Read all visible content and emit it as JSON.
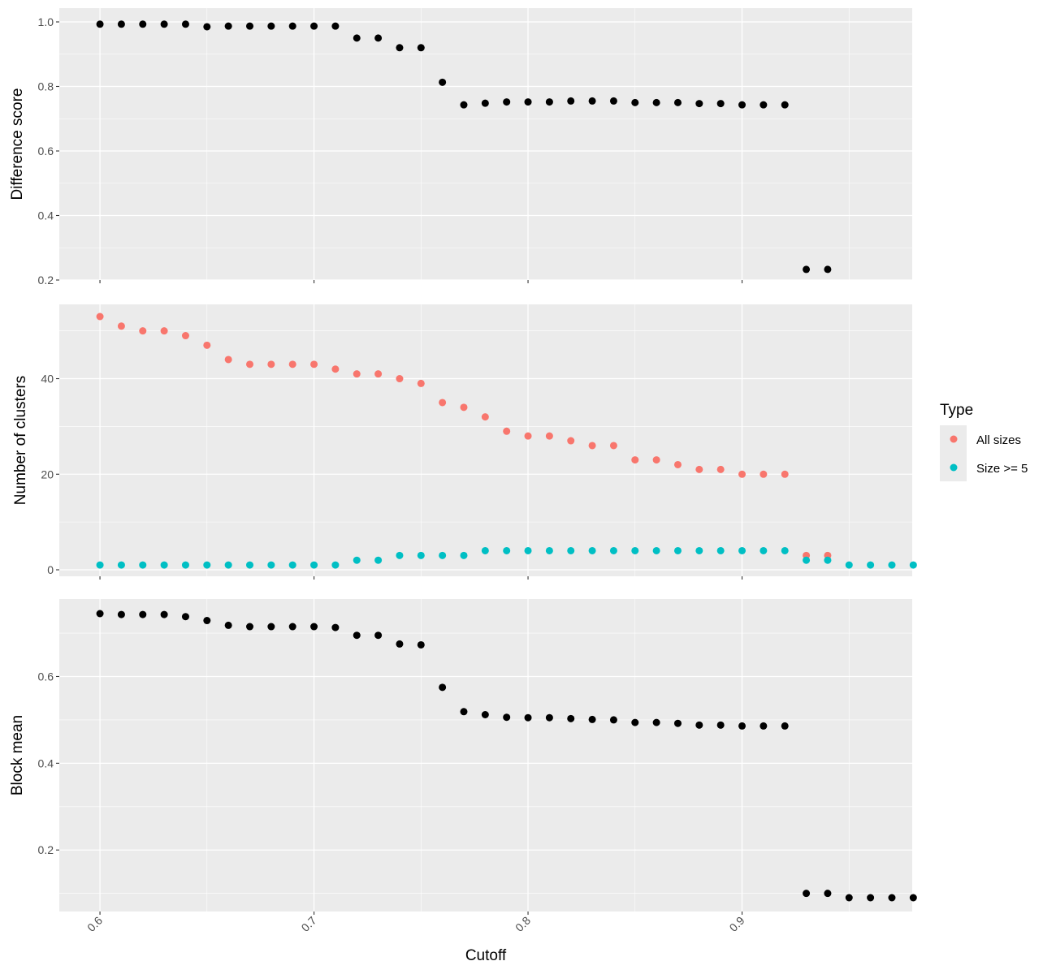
{
  "chart_data": {
    "type": "scatter",
    "x_axis": {
      "label": "Cutoff",
      "ticks": [
        0.6,
        0.7,
        0.8,
        0.9
      ],
      "tick_labels": [
        "0.6",
        "0.7",
        "0.8",
        "0.9"
      ],
      "range": [
        0.581,
        0.9795
      ]
    },
    "legend": {
      "title": "Type",
      "placement": "right",
      "entries": [
        {
          "label": "All sizes",
          "color": "#F8766D"
        },
        {
          "label": "Size >= 5",
          "color": "#00BFC4"
        }
      ]
    },
    "panels": [
      {
        "ylabel": "Difference score",
        "ylim": [
          0.2,
          1.0
        ],
        "yticks": [
          0.2,
          0.4,
          0.6,
          0.8,
          1.0
        ],
        "ytick_labels": [
          "0.2",
          "0.4",
          "0.6",
          "0.8",
          "1.0"
        ],
        "series": [
          {
            "color": "#000000",
            "x": [
              0.6,
              0.61,
              0.62,
              0.63,
              0.64,
              0.65,
              0.66,
              0.67,
              0.68,
              0.69,
              0.7,
              0.71,
              0.72,
              0.73,
              0.74,
              0.75,
              0.76,
              0.77,
              0.78,
              0.79,
              0.8,
              0.81,
              0.82,
              0.83,
              0.84,
              0.85,
              0.86,
              0.87,
              0.88,
              0.89,
              0.9,
              0.91,
              0.92,
              0.93,
              0.94
            ],
            "y": [
              0.993,
              0.993,
              0.993,
              0.993,
              0.993,
              0.985,
              0.987,
              0.987,
              0.987,
              0.987,
              0.987,
              0.987,
              0.95,
              0.95,
              0.92,
              0.92,
              0.813,
              0.743,
              0.748,
              0.752,
              0.752,
              0.752,
              0.755,
              0.755,
              0.755,
              0.75,
              0.75,
              0.75,
              0.747,
              0.747,
              0.743,
              0.743,
              0.743,
              0.233,
              0.233
            ]
          }
        ]
      },
      {
        "ylabel": "Number of clusters",
        "ylim": [
          0,
          53
        ],
        "yticks": [
          0,
          20,
          40
        ],
        "ytick_labels": [
          "0",
          "20",
          "40"
        ],
        "series": [
          {
            "name": "All sizes",
            "color": "#F8766D",
            "x": [
              0.6,
              0.61,
              0.62,
              0.63,
              0.64,
              0.65,
              0.66,
              0.67,
              0.68,
              0.69,
              0.7,
              0.71,
              0.72,
              0.73,
              0.74,
              0.75,
              0.76,
              0.77,
              0.78,
              0.79,
              0.8,
              0.81,
              0.82,
              0.83,
              0.84,
              0.85,
              0.86,
              0.87,
              0.88,
              0.89,
              0.9,
              0.91,
              0.92,
              0.93,
              0.94
            ],
            "y": [
              53,
              51,
              50,
              50,
              49,
              47,
              44,
              43,
              43,
              43,
              43,
              42,
              41,
              41,
              40,
              39,
              35,
              34,
              32,
              29,
              28,
              28,
              27,
              26,
              26,
              23,
              23,
              22,
              21,
              21,
              20,
              20,
              20,
              3,
              3
            ]
          },
          {
            "name": "Size >= 5",
            "color": "#00BFC4",
            "x": [
              0.6,
              0.61,
              0.62,
              0.63,
              0.64,
              0.65,
              0.66,
              0.67,
              0.68,
              0.69,
              0.7,
              0.71,
              0.72,
              0.73,
              0.74,
              0.75,
              0.76,
              0.77,
              0.78,
              0.79,
              0.8,
              0.81,
              0.82,
              0.83,
              0.84,
              0.85,
              0.86,
              0.87,
              0.88,
              0.89,
              0.9,
              0.91,
              0.92,
              0.93,
              0.94,
              0.95,
              0.96,
              0.97,
              0.98
            ],
            "y": [
              1,
              1,
              1,
              1,
              1,
              1,
              1,
              1,
              1,
              1,
              1,
              1,
              2,
              2,
              3,
              3,
              3,
              3,
              4,
              4,
              4,
              4,
              4,
              4,
              4,
              4,
              4,
              4,
              4,
              4,
              4,
              4,
              4,
              2,
              2,
              1,
              1,
              1,
              1
            ]
          }
        ]
      },
      {
        "ylabel": "Block mean",
        "ylim": [
          0.09,
          0.745
        ],
        "yticks": [
          0.2,
          0.4,
          0.6
        ],
        "ytick_labels": [
          "0.2",
          "0.4",
          "0.6"
        ],
        "series": [
          {
            "color": "#000000",
            "x": [
              0.6,
              0.61,
              0.62,
              0.63,
              0.64,
              0.65,
              0.66,
              0.67,
              0.68,
              0.69,
              0.7,
              0.71,
              0.72,
              0.73,
              0.74,
              0.75,
              0.76,
              0.77,
              0.78,
              0.79,
              0.8,
              0.81,
              0.82,
              0.83,
              0.84,
              0.85,
              0.86,
              0.87,
              0.88,
              0.89,
              0.9,
              0.91,
              0.92,
              0.93,
              0.94,
              0.95,
              0.96,
              0.97,
              0.98
            ],
            "y": [
              0.745,
              0.743,
              0.743,
              0.743,
              0.738,
              0.729,
              0.718,
              0.715,
              0.715,
              0.715,
              0.715,
              0.713,
              0.695,
              0.695,
              0.675,
              0.673,
              0.575,
              0.519,
              0.512,
              0.506,
              0.505,
              0.505,
              0.503,
              0.501,
              0.5,
              0.494,
              0.494,
              0.492,
              0.488,
              0.488,
              0.486,
              0.486,
              0.486,
              0.1,
              0.1,
              0.09,
              0.09,
              0.09,
              0.09
            ]
          }
        ]
      }
    ]
  }
}
